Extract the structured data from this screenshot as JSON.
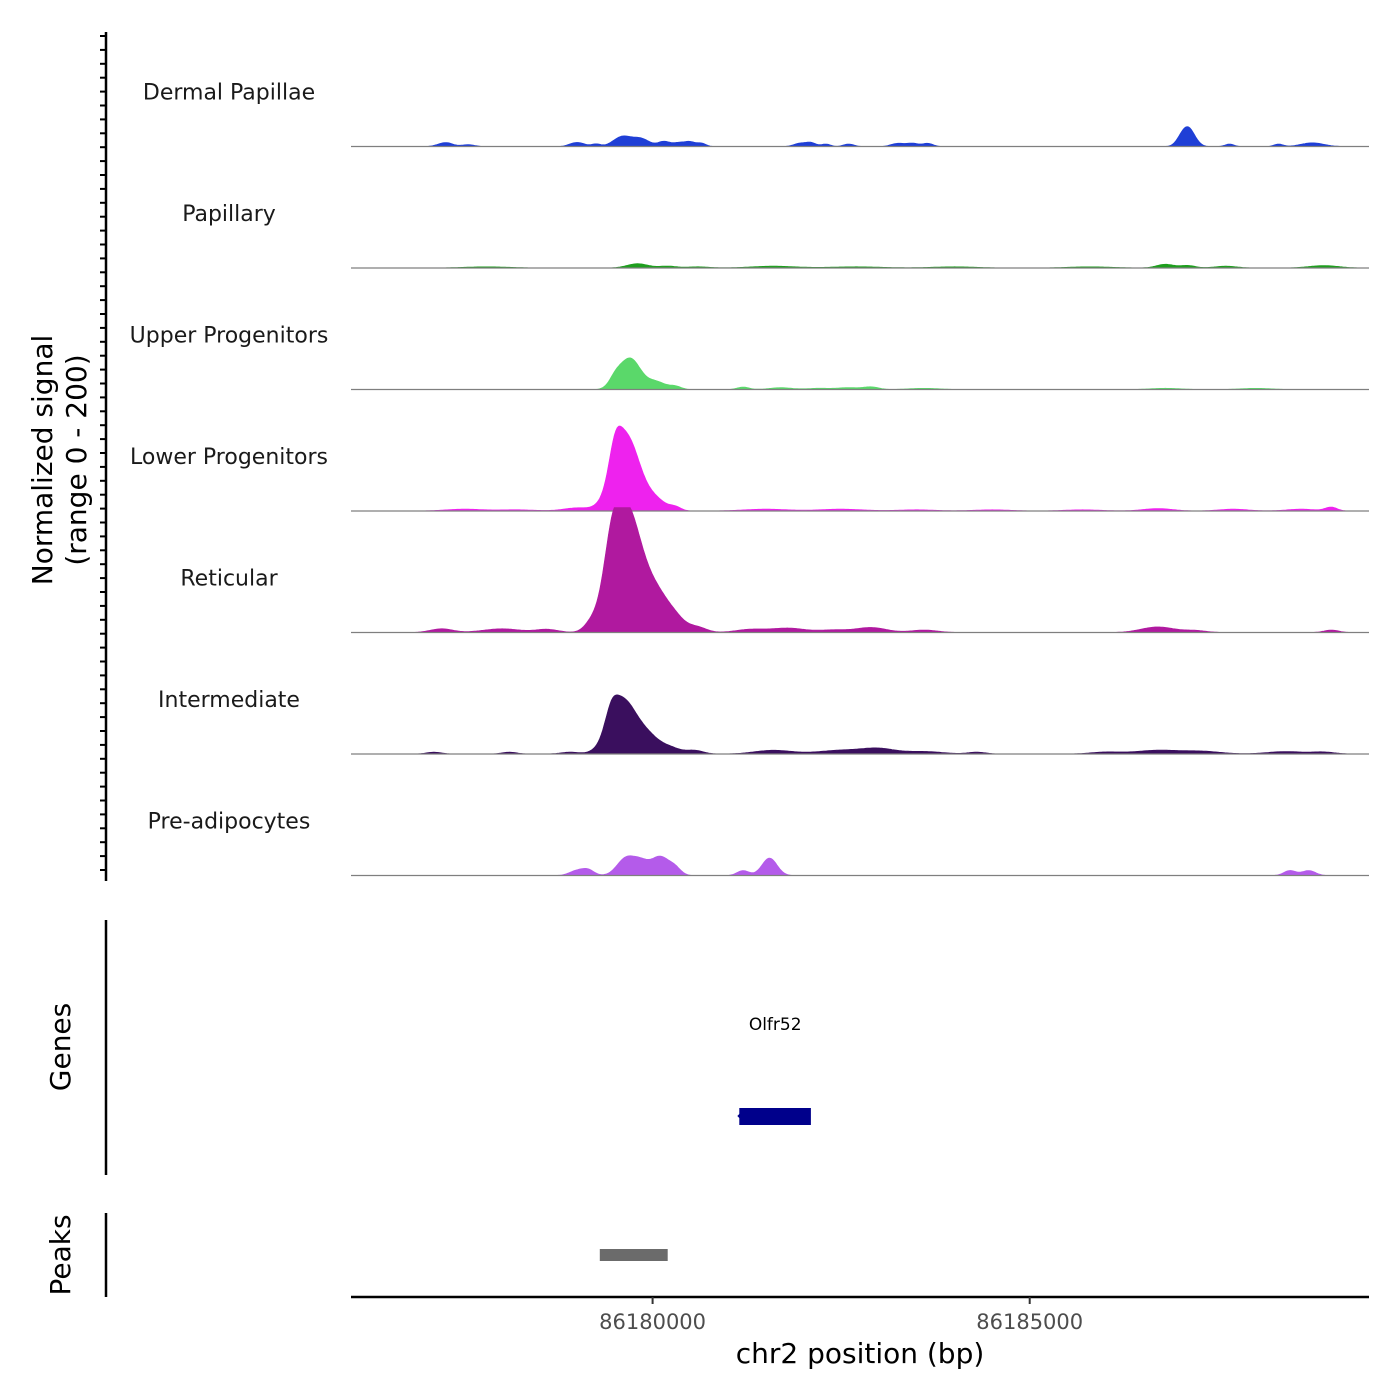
{
  "chart_data": {
    "type": "coverage",
    "ylabel_lines": [
      "Normalized signal",
      "(range 0 - 200)"
    ],
    "xlabel": "chr2 position (bp)",
    "chromosome": "chr2",
    "xlim": [
      86176000,
      86189500
    ],
    "ylim": [
      0,
      200
    ],
    "x_ticks": [
      86180000,
      86185000
    ],
    "x_tick_labels": [
      "86180000",
      "86185000"
    ],
    "tracks": [
      {
        "name": "Dermal Papillae",
        "color": "#1f3fd6",
        "peaks": [
          {
            "pos": 86177200,
            "h": 4,
            "w": 80
          },
          {
            "pos": 86177300,
            "h": 4,
            "w": 70
          },
          {
            "pos": 86177550,
            "h": 3,
            "w": 90
          },
          {
            "pos": 86178950,
            "h": 4,
            "w": 80
          },
          {
            "pos": 86179050,
            "h": 4,
            "w": 80
          },
          {
            "pos": 86179250,
            "h": 4,
            "w": 60
          },
          {
            "pos": 86179600,
            "h": 16,
            "w": 120
          },
          {
            "pos": 86179850,
            "h": 12,
            "w": 110
          },
          {
            "pos": 86180150,
            "h": 8,
            "w": 80
          },
          {
            "pos": 86180350,
            "h": 6,
            "w": 80
          },
          {
            "pos": 86180500,
            "h": 7,
            "w": 70
          },
          {
            "pos": 86180650,
            "h": 5,
            "w": 60
          },
          {
            "pos": 86181950,
            "h": 5,
            "w": 80
          },
          {
            "pos": 86182100,
            "h": 6,
            "w": 70
          },
          {
            "pos": 86182300,
            "h": 4,
            "w": 60
          },
          {
            "pos": 86182600,
            "h": 4,
            "w": 70
          },
          {
            "pos": 86183250,
            "h": 5,
            "w": 90
          },
          {
            "pos": 86183450,
            "h": 5,
            "w": 80
          },
          {
            "pos": 86183650,
            "h": 5,
            "w": 70
          },
          {
            "pos": 86187000,
            "h": 5,
            "w": 70
          },
          {
            "pos": 86187100,
            "h": 30,
            "w": 90
          },
          {
            "pos": 86187650,
            "h": 4,
            "w": 60
          },
          {
            "pos": 86188300,
            "h": 4,
            "w": 60
          },
          {
            "pos": 86188750,
            "h": 6,
            "w": 150
          }
        ]
      },
      {
        "name": "Papillary",
        "color": "#1e9e1e",
        "peaks": [
          {
            "pos": 86177800,
            "h": 2,
            "w": 300
          },
          {
            "pos": 86179800,
            "h": 7,
            "w": 140
          },
          {
            "pos": 86180200,
            "h": 3,
            "w": 120
          },
          {
            "pos": 86180600,
            "h": 2,
            "w": 150
          },
          {
            "pos": 86181600,
            "h": 3,
            "w": 300
          },
          {
            "pos": 86182700,
            "h": 2,
            "w": 350
          },
          {
            "pos": 86184000,
            "h": 2,
            "w": 300
          },
          {
            "pos": 86185800,
            "h": 2,
            "w": 300
          },
          {
            "pos": 86186800,
            "h": 6,
            "w": 120
          },
          {
            "pos": 86187100,
            "h": 4,
            "w": 100
          },
          {
            "pos": 86187600,
            "h": 3,
            "w": 150
          },
          {
            "pos": 86188900,
            "h": 4,
            "w": 200
          }
        ]
      },
      {
        "name": "Upper Progenitors",
        "color": "#5ad86a",
        "peaks": [
          {
            "pos": 86179700,
            "h": 50,
            "w": 140
          },
          {
            "pos": 86179500,
            "h": 12,
            "w": 80
          },
          {
            "pos": 86180050,
            "h": 12,
            "w": 120
          },
          {
            "pos": 86180300,
            "h": 5,
            "w": 80
          },
          {
            "pos": 86181200,
            "h": 4,
            "w": 80
          },
          {
            "pos": 86181700,
            "h": 3,
            "w": 150
          },
          {
            "pos": 86182200,
            "h": 2,
            "w": 150
          },
          {
            "pos": 86182600,
            "h": 3,
            "w": 150
          },
          {
            "pos": 86182900,
            "h": 4,
            "w": 100
          },
          {
            "pos": 86183600,
            "h": 2,
            "w": 200
          },
          {
            "pos": 86186800,
            "h": 2,
            "w": 200
          },
          {
            "pos": 86188000,
            "h": 2,
            "w": 200
          }
        ]
      },
      {
        "name": "Lower Progenitors",
        "color": "#ee22ee",
        "peaks": [
          {
            "pos": 86179650,
            "h": 120,
            "w": 180
          },
          {
            "pos": 86179500,
            "h": 40,
            "w": 80
          },
          {
            "pos": 86180050,
            "h": 15,
            "w": 130
          },
          {
            "pos": 86180300,
            "h": 6,
            "w": 80
          },
          {
            "pos": 86179000,
            "h": 5,
            "w": 180
          },
          {
            "pos": 86177500,
            "h": 3,
            "w": 250
          },
          {
            "pos": 86178200,
            "h": 2,
            "w": 250
          },
          {
            "pos": 86181500,
            "h": 3,
            "w": 300
          },
          {
            "pos": 86182500,
            "h": 3,
            "w": 300
          },
          {
            "pos": 86183500,
            "h": 2,
            "w": 250
          },
          {
            "pos": 86184500,
            "h": 2,
            "w": 250
          },
          {
            "pos": 86185700,
            "h": 2,
            "w": 250
          },
          {
            "pos": 86186700,
            "h": 4,
            "w": 200
          },
          {
            "pos": 86187700,
            "h": 3,
            "w": 200
          },
          {
            "pos": 86188600,
            "h": 3,
            "w": 200
          },
          {
            "pos": 86189000,
            "h": 6,
            "w": 80
          }
        ]
      },
      {
        "name": "Reticular",
        "color": "#b0199f",
        "peaks": [
          {
            "pos": 86179650,
            "h": 200,
            "w": 200
          },
          {
            "pos": 86179450,
            "h": 60,
            "w": 100
          },
          {
            "pos": 86180050,
            "h": 50,
            "w": 160
          },
          {
            "pos": 86180300,
            "h": 20,
            "w": 140
          },
          {
            "pos": 86180600,
            "h": 8,
            "w": 120
          },
          {
            "pos": 86179200,
            "h": 12,
            "w": 100
          },
          {
            "pos": 86177200,
            "h": 6,
            "w": 150
          },
          {
            "pos": 86178000,
            "h": 6,
            "w": 250
          },
          {
            "pos": 86178600,
            "h": 5,
            "w": 150
          },
          {
            "pos": 86181300,
            "h": 5,
            "w": 200
          },
          {
            "pos": 86181800,
            "h": 7,
            "w": 220
          },
          {
            "pos": 86182400,
            "h": 4,
            "w": 200
          },
          {
            "pos": 86182900,
            "h": 8,
            "w": 200
          },
          {
            "pos": 86183600,
            "h": 4,
            "w": 180
          },
          {
            "pos": 86186700,
            "h": 9,
            "w": 220
          },
          {
            "pos": 86187200,
            "h": 3,
            "w": 150
          },
          {
            "pos": 86189000,
            "h": 4,
            "w": 100
          }
        ]
      },
      {
        "name": "Intermediate",
        "color": "#3a0f5e",
        "peaks": [
          {
            "pos": 86179600,
            "h": 85,
            "w": 180
          },
          {
            "pos": 86179450,
            "h": 25,
            "w": 80
          },
          {
            "pos": 86179950,
            "h": 25,
            "w": 160
          },
          {
            "pos": 86180250,
            "h": 8,
            "w": 120
          },
          {
            "pos": 86180550,
            "h": 6,
            "w": 120
          },
          {
            "pos": 86177100,
            "h": 3,
            "w": 100
          },
          {
            "pos": 86178100,
            "h": 3,
            "w": 100
          },
          {
            "pos": 86178900,
            "h": 3,
            "w": 120
          },
          {
            "pos": 86181600,
            "h": 6,
            "w": 250
          },
          {
            "pos": 86182500,
            "h": 6,
            "w": 300
          },
          {
            "pos": 86183000,
            "h": 8,
            "w": 220
          },
          {
            "pos": 86183600,
            "h": 4,
            "w": 250
          },
          {
            "pos": 86184300,
            "h": 3,
            "w": 120
          },
          {
            "pos": 86186000,
            "h": 3,
            "w": 200
          },
          {
            "pos": 86186700,
            "h": 6,
            "w": 300
          },
          {
            "pos": 86187300,
            "h": 4,
            "w": 250
          },
          {
            "pos": 86188400,
            "h": 4,
            "w": 250
          },
          {
            "pos": 86188900,
            "h": 3,
            "w": 150
          }
        ]
      },
      {
        "name": "Pre-adipocytes",
        "color": "#b45bea",
        "peaks": [
          {
            "pos": 86179000,
            "h": 8,
            "w": 100
          },
          {
            "pos": 86179150,
            "h": 8,
            "w": 80
          },
          {
            "pos": 86179650,
            "h": 28,
            "w": 120
          },
          {
            "pos": 86179850,
            "h": 18,
            "w": 100
          },
          {
            "pos": 86180100,
            "h": 30,
            "w": 120
          },
          {
            "pos": 86180300,
            "h": 10,
            "w": 80
          },
          {
            "pos": 86181200,
            "h": 8,
            "w": 80
          },
          {
            "pos": 86181550,
            "h": 28,
            "w": 100
          },
          {
            "pos": 86188450,
            "h": 8,
            "w": 80
          },
          {
            "pos": 86188700,
            "h": 8,
            "w": 90
          }
        ]
      }
    ],
    "genes": [
      {
        "name": "Olfr52",
        "start": 86181150,
        "end": 86182100,
        "color": "#00008b"
      }
    ],
    "peak_regions": [
      {
        "start": 86179300,
        "end": 86180200,
        "color": "#6b6b6b"
      }
    ],
    "panel_labels": {
      "genes": "Genes",
      "peaks": "Peaks"
    }
  }
}
